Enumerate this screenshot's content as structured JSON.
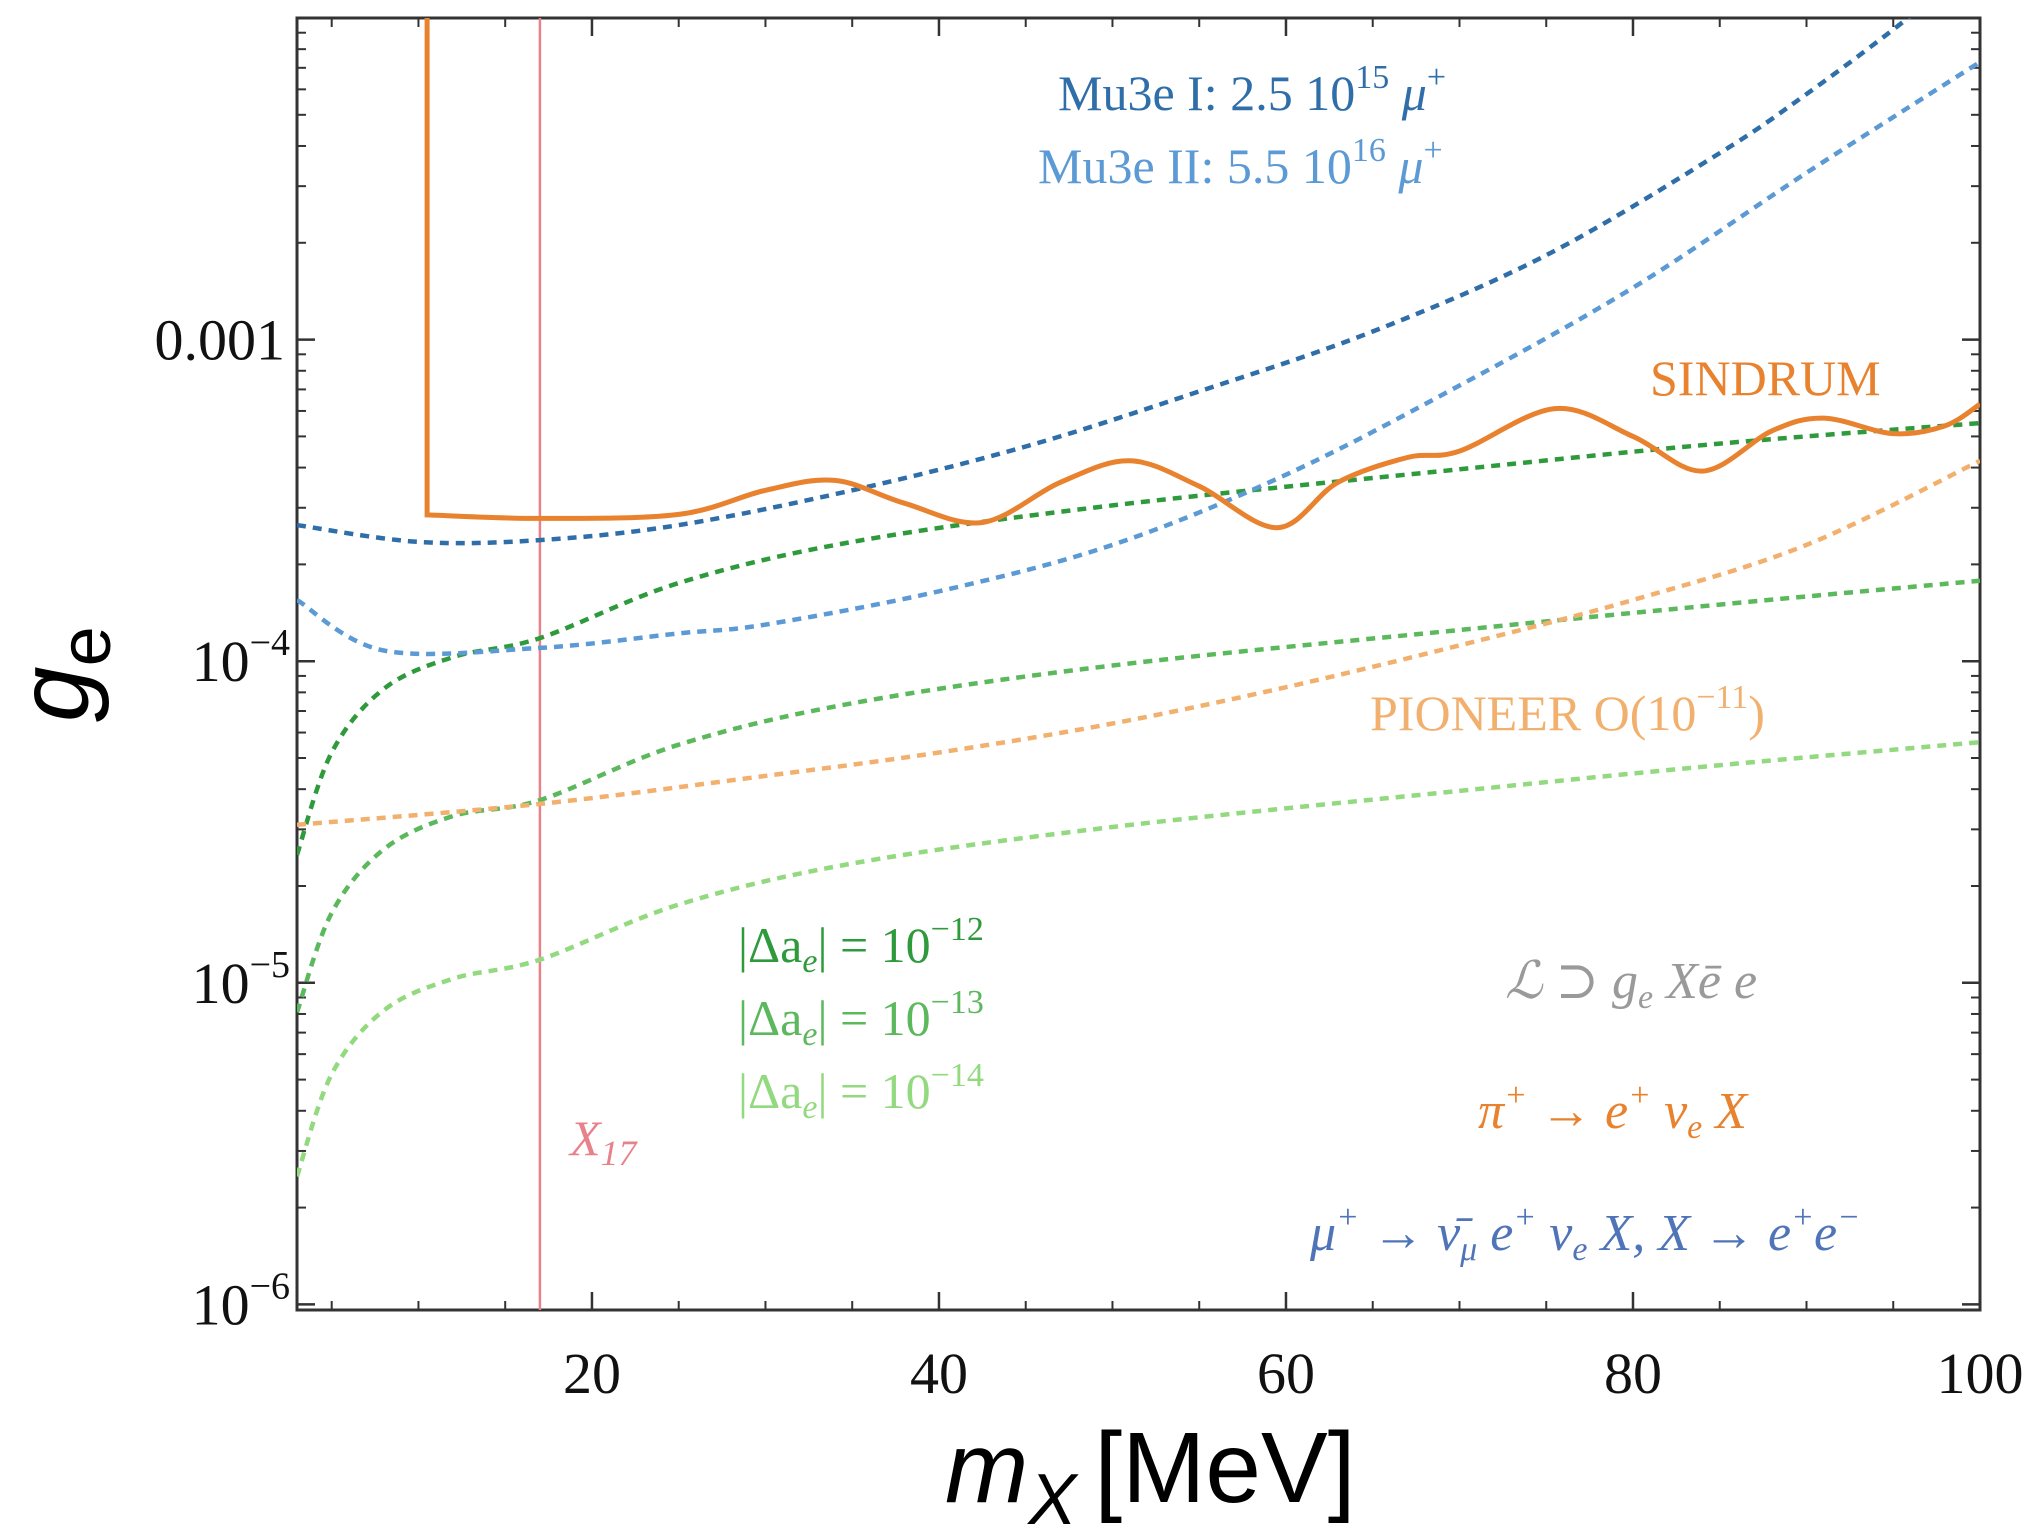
{
  "chart_data": {
    "type": "line",
    "title": "",
    "xlabel": "m_X [MeV]",
    "xlabel_main": "m",
    "xlabel_sub": "X",
    "xlabel_units": "[MeV]",
    "ylabel": "g_e",
    "ylabel_main": "g",
    "ylabel_sub": "e",
    "xlim": [
      3,
      100
    ],
    "ylim": [
      1e-06,
      0.01
    ],
    "yscale": "log",
    "x_ticks": [
      20,
      40,
      60,
      80,
      100
    ],
    "x_tick_labels": [
      "20",
      "40",
      "60",
      "80",
      "100"
    ],
    "y_ticks": [
      {
        "value": 0.001,
        "base": "0.001",
        "exp": ""
      },
      {
        "value": 0.0001,
        "base": "10",
        "exp": "−4"
      },
      {
        "value": 1e-05,
        "base": "10",
        "exp": "−5"
      },
      {
        "value": 1e-06,
        "base": "10",
        "exp": "−6"
      }
    ],
    "vline": {
      "x": 17,
      "label": "X",
      "label_sub": "17",
      "color": "#e8828a"
    },
    "series": [
      {
        "name": "SINDRUM",
        "style": "solid",
        "color": "#e8822e",
        "x": [
          10.5,
          10.5,
          17,
          25,
          30,
          34,
          38,
          42.5,
          47,
          51,
          55,
          59.5,
          63,
          67,
          70,
          75.5,
          80,
          84,
          88,
          91,
          95,
          98,
          100
        ],
        "y": [
          0.02,
          0.000285,
          0.000278,
          0.000286,
          0.00034,
          0.000365,
          0.00031,
          0.00027,
          0.00036,
          0.00042,
          0.00035,
          0.00026,
          0.00036,
          0.00043,
          0.00045,
          0.00061,
          0.0005,
          0.00039,
          0.00052,
          0.00057,
          0.00051,
          0.00054,
          0.00063
        ]
      },
      {
        "name": "Mu3e I: 2.5 10^15 μ+",
        "style": "dashed",
        "color": "#2f6ea8",
        "x": [
          3,
          10,
          17,
          25,
          35,
          45,
          55,
          65,
          75,
          85,
          90,
          95,
          97
        ],
        "y": [
          0.000265,
          0.000235,
          0.000238,
          0.000265,
          0.00034,
          0.000465,
          0.00069,
          0.00106,
          0.00183,
          0.0038,
          0.0058,
          0.0092,
          0.0113
        ]
      },
      {
        "name": "Mu3e II: 5.5 10^16 μ+",
        "style": "dashed",
        "color": "#5b9ad4",
        "x": [
          3,
          8,
          17,
          25,
          30,
          40,
          50,
          60,
          70,
          80,
          90,
          100
        ],
        "y": [
          0.000155,
          0.000108,
          0.00011,
          0.000122,
          0.00013,
          0.000165,
          0.00023,
          0.00038,
          0.00072,
          0.00145,
          0.0033,
          0.0073
        ]
      },
      {
        "name": "PIONEER O(10^−11)",
        "style": "dashed",
        "color": "#f2b06e",
        "x": [
          3,
          17,
          30,
          40,
          50,
          60,
          70,
          80,
          90,
          100
        ],
        "y": [
          3.1e-05,
          3.6e-05,
          4.4e-05,
          5.2e-05,
          6.4e-05,
          8.3e-05,
          0.000112,
          0.000155,
          0.00023,
          0.00042
        ]
      },
      {
        "name": "|Δa_e| = 10^−12",
        "style": "dashed",
        "color": "#2e9a3c",
        "x": [
          3,
          5,
          8,
          12,
          17,
          25,
          35,
          50,
          70,
          85,
          100
        ],
        "y": [
          2.5e-05,
          5.2e-05,
          8.2e-05,
          0.000103,
          0.000118,
          0.000175,
          0.000235,
          0.000305,
          0.000395,
          0.000475,
          0.00055
        ]
      },
      {
        "name": "|Δa_e| = 10^−13",
        "style": "dashed",
        "color": "#5cb85c",
        "x": [
          3,
          5,
          8,
          12,
          17,
          25,
          35,
          50,
          70,
          85,
          100
        ],
        "y": [
          8.1e-06,
          1.65e-05,
          2.6e-05,
          3.3e-05,
          3.7e-05,
          5.5e-05,
          7.4e-05,
          9.7e-05,
          0.000125,
          0.00015,
          0.000178
        ]
      },
      {
        "name": "|Δa_e| = 10^−14",
        "style": "dashed",
        "color": "#93d97f",
        "x": [
          3,
          5,
          8,
          12,
          17,
          25,
          35,
          50,
          70,
          85,
          100
        ],
        "y": [
          2.5e-06,
          5.2e-06,
          8.2e-06,
          1.03e-05,
          1.18e-05,
          1.75e-05,
          2.35e-05,
          3.05e-05,
          3.95e-05,
          4.75e-05,
          5.6e-05
        ]
      }
    ],
    "annotations": [
      {
        "key": "mu3e1",
        "parts": [
          "Mu3e I: 2.5 10",
          "15",
          " μ",
          "+"
        ],
        "color": "#2f6ea8"
      },
      {
        "key": "mu3e2",
        "parts": [
          "Mu3e II: 5.5 10",
          "16",
          " μ",
          "+"
        ],
        "color": "#5b9ad4"
      },
      {
        "key": "sindrum",
        "parts": [
          "SINDRUM"
        ],
        "color": "#e8822e"
      },
      {
        "key": "pioneer",
        "parts": [
          "PIONEER O(10",
          "−11",
          ")"
        ],
        "color": "#f2b06e"
      },
      {
        "key": "da12",
        "parts": [
          "|Δa",
          "e",
          "| = 10",
          "−12"
        ],
        "color": "#2e9a3c"
      },
      {
        "key": "da13",
        "parts": [
          "|Δa",
          "e",
          "| = 10",
          "−13"
        ],
        "color": "#5cb85c"
      },
      {
        "key": "da14",
        "parts": [
          "|Δa",
          "e",
          "| = 10",
          "−14"
        ],
        "color": "#93d97f"
      },
      {
        "key": "lagr",
        "parts": [
          "ℒ ⊃ g",
          "e",
          " Xē e"
        ],
        "color": "#9a9a9a"
      },
      {
        "key": "pidecay",
        "parts": [
          "π",
          "+",
          " → e",
          "+",
          " ν",
          "e",
          " X"
        ],
        "color": "#e8822e"
      },
      {
        "key": "mudecay",
        "parts": [
          "μ",
          "+",
          " → ν̄",
          "μ",
          " e",
          "+",
          " ν",
          "e",
          " X, X → e",
          "+",
          "e",
          "−"
        ],
        "color": "#4f74b8"
      }
    ]
  }
}
